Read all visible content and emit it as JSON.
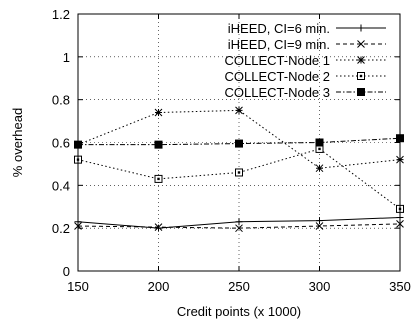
{
  "chart_data": {
    "type": "line",
    "xlabel": "Credit points (x 1000)",
    "ylabel": "% overhead",
    "x": [
      150,
      200,
      250,
      300,
      350
    ],
    "xlim": [
      150,
      350
    ],
    "ylim": [
      0,
      1.2
    ],
    "xticks": [
      "150",
      "200",
      "250",
      "300",
      "350"
    ],
    "yticks": [
      "0",
      "0.2",
      "0.4",
      "0.6",
      "0.8",
      "1",
      "1.2"
    ],
    "grid": true,
    "legend_position": "top-right",
    "series": [
      {
        "name": "iHEED, CI=6 min.",
        "values": [
          0.23,
          0.2,
          0.23,
          0.235,
          0.25
        ],
        "marker": "plus",
        "dash": "solid",
        "color": "#000000"
      },
      {
        "name": "iHEED, CI=9 min.",
        "values": [
          0.21,
          0.205,
          0.2,
          0.21,
          0.22
        ],
        "marker": "x",
        "dash": "dashed",
        "color": "#000000"
      },
      {
        "name": "COLLECT-Node 1",
        "values": [
          0.59,
          0.74,
          0.75,
          0.48,
          0.52
        ],
        "marker": "star",
        "dash": "dotted",
        "color": "#000000"
      },
      {
        "name": "COLLECT-Node 2",
        "values": [
          0.52,
          0.43,
          0.46,
          0.57,
          0.29
        ],
        "marker": "square-open",
        "dash": "dotted",
        "color": "#000000"
      },
      {
        "name": "COLLECT-Node 3",
        "values": [
          0.59,
          0.59,
          0.595,
          0.6,
          0.62
        ],
        "marker": "square-filled",
        "dash": "dashdot",
        "color": "#000000"
      }
    ]
  }
}
